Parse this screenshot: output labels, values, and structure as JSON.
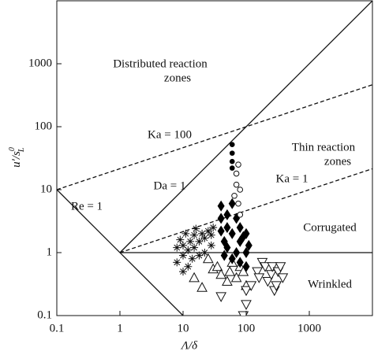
{
  "chart_data": {
    "type": "scatter",
    "x_label": "Λ/δ",
    "y_label": {
      "main": "u′/s",
      "sup": "0",
      "sub": "L"
    },
    "xscale": "log",
    "yscale": "log",
    "xlim": [
      0.1,
      10000
    ],
    "ylim": [
      0.1,
      10000
    ],
    "xticks": [
      0.1,
      1,
      10,
      100,
      1000
    ],
    "yticks": [
      0.1,
      1,
      10,
      100,
      1000
    ],
    "lines": [
      {
        "x": [
          0.1,
          10
        ],
        "y": [
          10,
          0.1
        ],
        "dash": false
      },
      {
        "x": [
          1,
          10000
        ],
        "y": [
          1,
          10000
        ],
        "dash": false
      },
      {
        "x": [
          1,
          10000
        ],
        "y": [
          1,
          1
        ],
        "dash": false
      },
      {
        "x": [
          1,
          10000
        ],
        "y": [
          1,
          21.5
        ],
        "dash": true
      },
      {
        "x": [
          0.1,
          10000
        ],
        "y": [
          10,
          464
        ],
        "dash": true
      }
    ],
    "annotations": [
      "Distributed reaction",
      "zones",
      "Ka = 100",
      "Thin reaction",
      "zones",
      "Ka = 1",
      "Da = 1",
      "Re = 1",
      "Corrugated",
      "Wrinkled"
    ],
    "series": [
      {
        "marker": "asterisk",
        "color": "#111111",
        "x": [
          8,
          8,
          9,
          10,
          10,
          10,
          11,
          12,
          12,
          13,
          14,
          15,
          15,
          16,
          18,
          18,
          20,
          22,
          22,
          25,
          28,
          28,
          30
        ],
        "values": [
          1.2,
          0.7,
          1.6,
          0.5,
          0.9,
          1.3,
          2.0,
          0.6,
          1.1,
          1.5,
          0.8,
          1.9,
          1.2,
          2.4,
          0.9,
          1.5,
          2.0,
          1.0,
          1.7,
          2.2,
          1.3,
          1.9,
          2.5
        ]
      },
      {
        "marker": "triangle-up",
        "color": "#111111",
        "x": [
          15,
          20,
          25,
          30,
          35,
          40,
          50,
          55,
          60,
          70,
          80,
          90,
          100
        ],
        "values": [
          0.4,
          0.28,
          0.8,
          0.55,
          0.6,
          0.45,
          0.35,
          0.5,
          0.7,
          0.4,
          0.6,
          0.5,
          0.3
        ]
      },
      {
        "marker": "triangle-down",
        "color": "#111111",
        "x": [
          40,
          90,
          100,
          100,
          120,
          150,
          160,
          180,
          200,
          220,
          250,
          260,
          280,
          300,
          320,
          350,
          380
        ],
        "values": [
          0.2,
          0.1,
          0.15,
          0.25,
          0.3,
          0.5,
          0.4,
          0.7,
          0.6,
          0.35,
          0.45,
          0.6,
          0.25,
          0.3,
          0.5,
          0.6,
          0.4
        ]
      },
      {
        "marker": "diamond",
        "color": "#000000",
        "x": [
          40,
          40,
          40,
          45,
          45,
          50,
          50,
          50,
          60,
          60,
          60,
          70,
          70,
          80,
          80,
          80,
          90,
          100,
          100,
          100,
          110
        ],
        "values": [
          5.5,
          3.5,
          2.2,
          1.5,
          0.9,
          4.0,
          2.5,
          1.2,
          6.0,
          2.0,
          0.8,
          3.5,
          1.0,
          2.5,
          1.5,
          0.7,
          1.8,
          2.0,
          1.0,
          0.6,
          1.3
        ]
      },
      {
        "marker": "circle",
        "color": "#000000",
        "x": [
          60,
          60,
          60,
          60
        ],
        "values": [
          22,
          28,
          38,
          52
        ]
      },
      {
        "marker": "circle-open",
        "color": "#111111",
        "x": [
          65,
          70,
          70,
          75,
          75,
          80,
          80
        ],
        "values": [
          8,
          12,
          18,
          6,
          25,
          4,
          10
        ]
      }
    ]
  }
}
